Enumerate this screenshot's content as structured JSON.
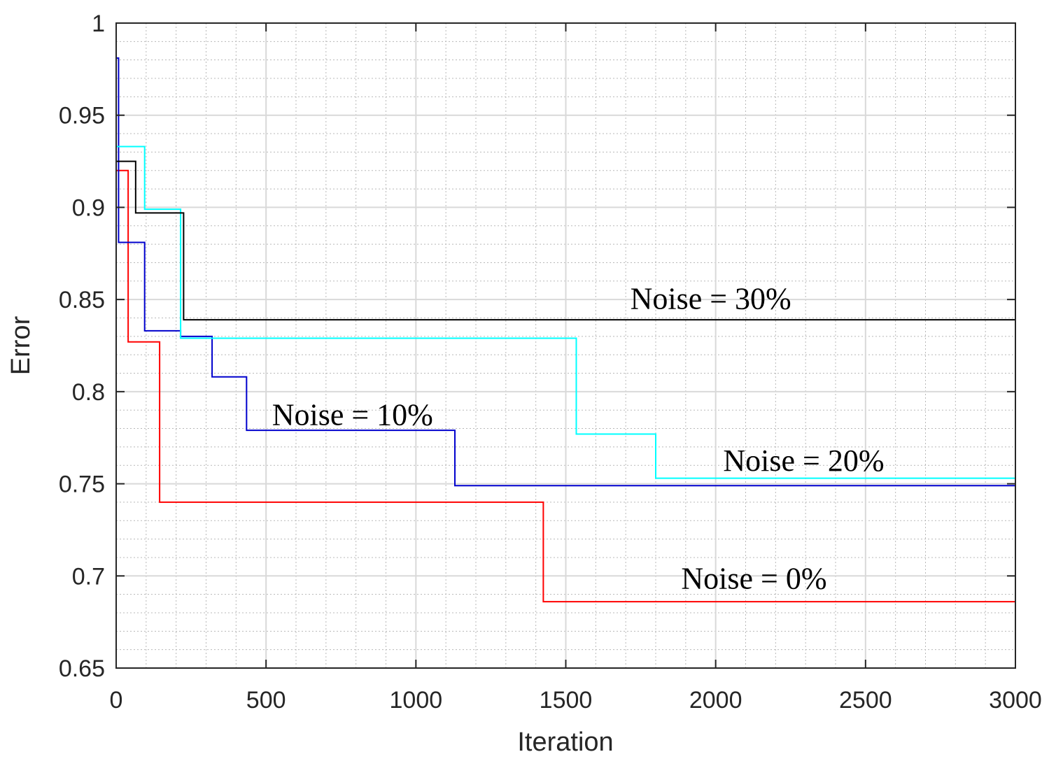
{
  "chart_data": {
    "type": "line",
    "title": "",
    "xlabel": "Iteration",
    "ylabel": "Error",
    "xlim": [
      0,
      3000
    ],
    "ylim": [
      0.65,
      1
    ],
    "xticks": [
      "0",
      "500",
      "1000",
      "1500",
      "2000",
      "2500",
      "3000"
    ],
    "yticks": [
      "0.65",
      "0.7",
      "0.75",
      "0.8",
      "0.85",
      "0.9",
      "0.95",
      "1"
    ],
    "grid": true,
    "minor_grid": true,
    "step": true,
    "series": [
      {
        "color": "#ff0000",
        "x": [
          0,
          40,
          145,
          1425,
          3000
        ],
        "y": [
          0.92,
          0.827,
          0.74,
          0.686,
          0.686
        ]
      },
      {
        "color": "#0000cd",
        "x": [
          0,
          8,
          95,
          215,
          320,
          435,
          1130,
          3000
        ],
        "y": [
          0.981,
          0.881,
          0.833,
          0.83,
          0.808,
          0.779,
          0.749,
          0.749
        ]
      },
      {
        "color": "#00ffff",
        "x": [
          0,
          95,
          215,
          1535,
          1800,
          3000
        ],
        "y": [
          0.933,
          0.899,
          0.829,
          0.777,
          0.753,
          0.753
        ]
      },
      {
        "color": "#000000",
        "x": [
          0,
          65,
          225,
          3000
        ],
        "y": [
          0.925,
          0.897,
          0.839,
          0.839
        ]
      }
    ],
    "annotations": [
      {
        "text": "Noise  = 30%",
        "x": 1715,
        "y": 0.845
      },
      {
        "text": "Noise  = 10%",
        "x": 520,
        "y": 0.782
      },
      {
        "text": "Noise  = 20%",
        "x": 2025,
        "y": 0.757
      },
      {
        "text": "Noise  = 0%",
        "x": 1885,
        "y": 0.693
      }
    ]
  }
}
